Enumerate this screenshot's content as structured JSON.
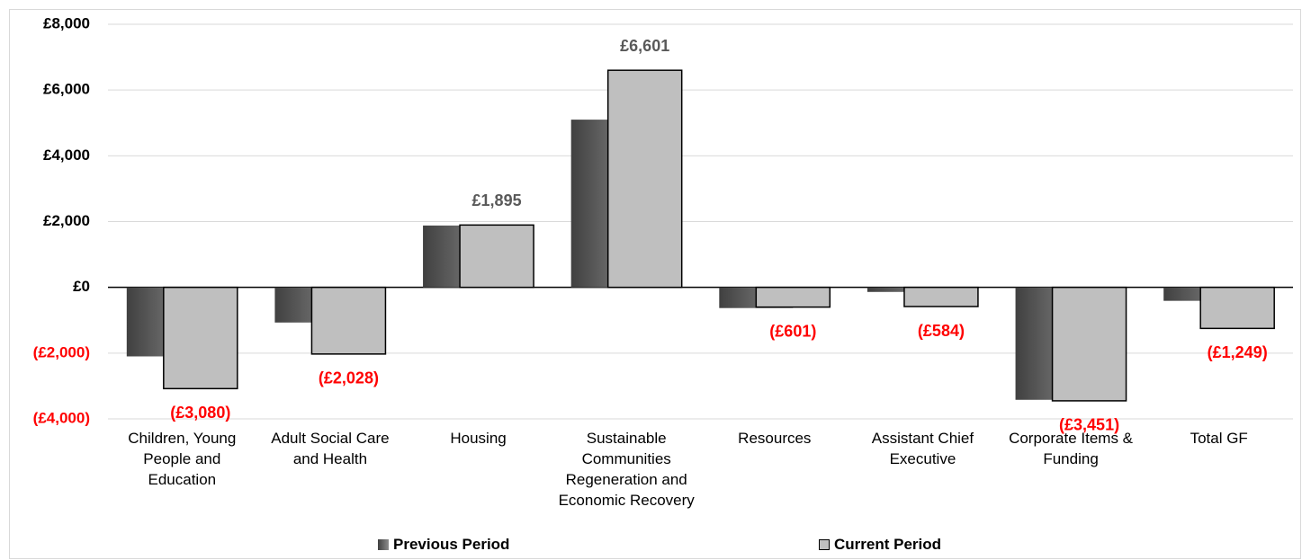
{
  "chart_data": {
    "type": "bar",
    "categories": [
      "Children, Young People and Education",
      "Adult Social Care and Health",
      "Housing",
      "Sustainable Communities Regeneration and Economic Recovery",
      "Resources",
      "Assistant Chief Executive",
      "Corporate Items & Funding",
      "Total GF"
    ],
    "series": [
      {
        "name": "Previous Period",
        "color": "#595959",
        "values": [
          -2100,
          -1070,
          1880,
          5100,
          -630,
          -140,
          -3420,
          -410
        ]
      },
      {
        "name": "Current Period",
        "color": "#bfbfbf",
        "values": [
          -3080,
          -2028,
          1895,
          6601,
          -601,
          -584,
          -3451,
          -1249
        ],
        "value_labels": [
          "(£3,080)",
          "(£2,028)",
          "£1,895",
          "£6,601",
          "(£601)",
          "(£584)",
          "(£3,451)",
          "(£1,249)"
        ]
      }
    ],
    "ylim": [
      -4000,
      8000
    ],
    "yticks": [
      {
        "value": 8000,
        "label": "£8,000"
      },
      {
        "value": 6000,
        "label": "£6,000"
      },
      {
        "value": 4000,
        "label": "£4,000"
      },
      {
        "value": 2000,
        "label": "£2,000"
      },
      {
        "value": 0,
        "label": "£0"
      },
      {
        "value": -2000,
        "label": "(£2,000)"
      },
      {
        "value": -4000,
        "label": "(£4,000)"
      }
    ],
    "grid": true,
    "legend": "bottom"
  }
}
